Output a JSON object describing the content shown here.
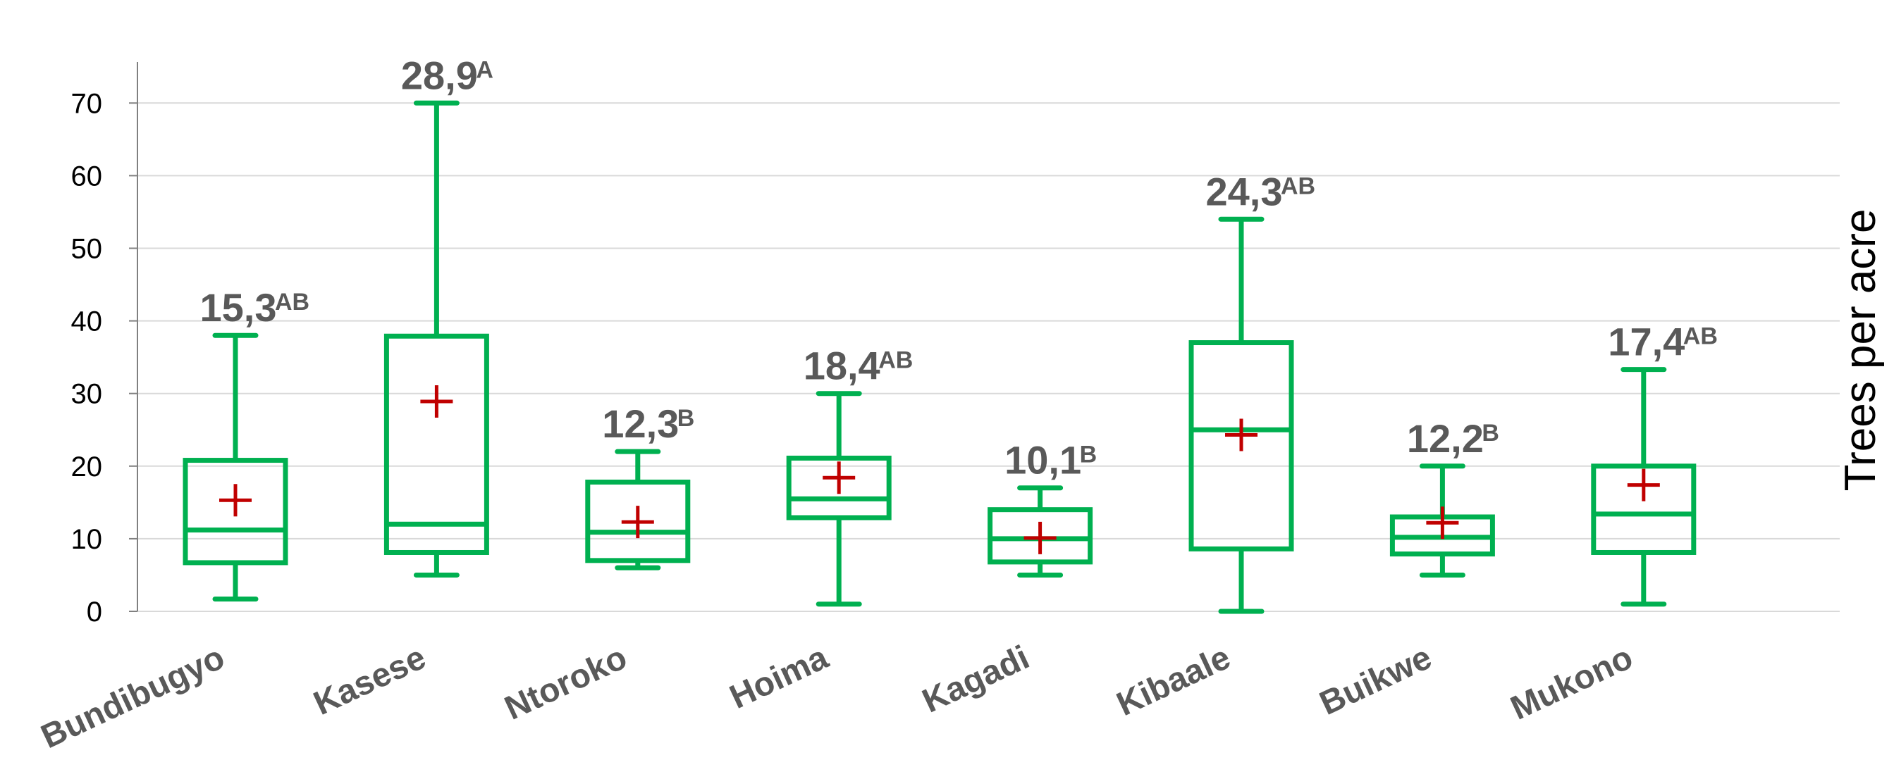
{
  "chart_data": {
    "type": "box",
    "title": "",
    "xlabel": "",
    "ylabel": "Trees per acre",
    "ylim": [
      0,
      75
    ],
    "yticks": [
      "0",
      "10",
      "20",
      "30",
      "40",
      "50",
      "60",
      "70"
    ],
    "grid": "horizontal",
    "colors": {
      "box": "#00b050",
      "mean": "#c00000",
      "grid": "#d9d9d9",
      "axis": "#808080",
      "label": "#595959"
    },
    "categories": [
      "Bundibugyo",
      "Kasese",
      "Ntoroko",
      "Hoima",
      "Kagadi",
      "Kibaale",
      "Buikwe",
      "Mukono"
    ],
    "boxes": [
      {
        "min": 1.7,
        "q1": 6.7,
        "median": 11.2,
        "q3": 20.8,
        "max": 38.0,
        "mean": 15.3,
        "mean_label": "15,3",
        "group": "AB"
      },
      {
        "min": 5.0,
        "q1": 8.1,
        "median": 12.0,
        "q3": 37.9,
        "max": 70.0,
        "mean": 28.9,
        "mean_label": "28,9",
        "group": "A"
      },
      {
        "min": 6.0,
        "q1": 7.0,
        "median": 10.9,
        "q3": 17.8,
        "max": 22.0,
        "mean": 12.3,
        "mean_label": "12,3",
        "group": "B"
      },
      {
        "min": 1.0,
        "q1": 12.9,
        "median": 15.5,
        "q3": 21.1,
        "max": 30.0,
        "mean": 18.4,
        "mean_label": "18,4",
        "group": "AB"
      },
      {
        "min": 5.0,
        "q1": 6.8,
        "median": 10.0,
        "q3": 14.0,
        "max": 17.0,
        "mean": 10.1,
        "mean_label": "10,1",
        "group": "B"
      },
      {
        "min": 0.0,
        "q1": 8.6,
        "median": 25.0,
        "q3": 37.0,
        "max": 54.0,
        "mean": 24.3,
        "mean_label": "24,3",
        "group": "AB"
      },
      {
        "min": 5.0,
        "q1": 7.9,
        "median": 10.2,
        "q3": 13.0,
        "max": 20.0,
        "mean": 12.2,
        "mean_label": "12,2",
        "group": "B"
      },
      {
        "min": 1.0,
        "q1": 8.1,
        "median": 13.4,
        "q3": 20.0,
        "max": 33.3,
        "mean": 17.4,
        "mean_label": "17,4",
        "group": "AB"
      }
    ]
  }
}
